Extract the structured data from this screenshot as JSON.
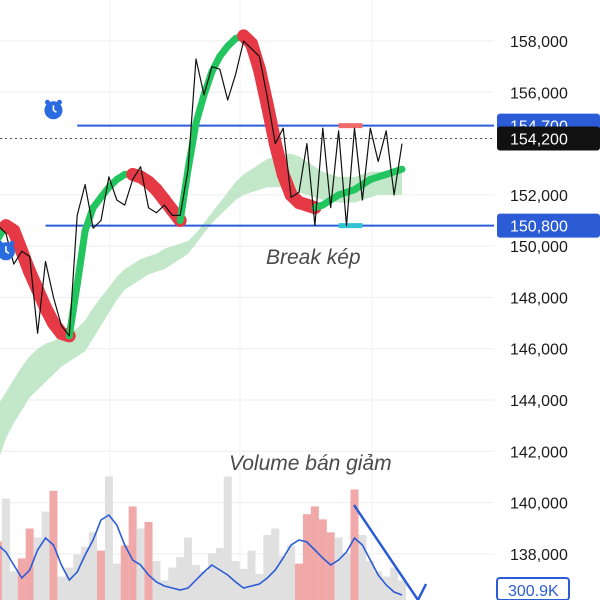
{
  "chart_data": {
    "type": "line",
    "y_axis": {
      "ticks": [
        {
          "value": 158000,
          "label": "158,000"
        },
        {
          "value": 156000,
          "label": "156,000"
        },
        {
          "value": 152000,
          "label": "152,000"
        },
        {
          "value": 150000,
          "label": "150,000"
        },
        {
          "value": 148000,
          "label": "148,000"
        },
        {
          "value": 146000,
          "label": "146,000"
        },
        {
          "value": 144000,
          "label": "144,000"
        },
        {
          "value": 142000,
          "label": "142,000"
        },
        {
          "value": 140000,
          "label": "140,000"
        },
        {
          "value": 138000,
          "label": "138,000"
        }
      ],
      "range": [
        136200,
        159600
      ],
      "grid": true
    },
    "price_tags": [
      {
        "value": 154700,
        "label": "154,700",
        "style": "blue"
      },
      {
        "value": 154200,
        "label": "154,200",
        "style": "dark"
      },
      {
        "value": 150800,
        "label": "150,800",
        "style": "blue"
      }
    ],
    "volume_tag": {
      "label": "300.9K"
    },
    "horizontal_levels": [
      {
        "value": 154700,
        "from_index": 10,
        "color": "#2b5cd6"
      },
      {
        "value": 150800,
        "from_index": 6,
        "color": "#2b5cd6"
      }
    ],
    "current_price": 154200,
    "series": [
      {
        "kind": "price",
        "values": [
          150800,
          150500,
          149300,
          149800,
          149600,
          146600,
          149400,
          148000,
          146900,
          146500,
          151200,
          152400,
          150700,
          151000,
          152700,
          151800,
          151600,
          152600,
          153100,
          151500,
          151300,
          151600,
          151200,
          151200,
          153000,
          157300,
          155900,
          157000,
          156900,
          155700,
          156700,
          158000,
          157700,
          157400,
          155800,
          154000,
          154600,
          151900,
          152100,
          154000,
          150800,
          154600,
          151500,
          154500,
          150800,
          154600,
          151800,
          154600,
          153300,
          154500,
          152000,
          154000
        ]
      },
      {
        "kind": "band_upper",
        "values": [
          143800,
          144300,
          144800,
          145300,
          145700,
          146000,
          146200,
          146300,
          146500,
          146600,
          146800,
          147100,
          147600,
          148000,
          148400,
          148800,
          149100,
          149300,
          149500,
          149600,
          149700,
          149900,
          150000,
          150100,
          150200,
          150500,
          150900,
          151300,
          151700,
          152100,
          152500,
          152800,
          153000,
          153200,
          153400,
          153500,
          153600,
          153600,
          153500,
          153300,
          153100,
          152900,
          152800,
          152700,
          152700,
          152700,
          152800,
          152900,
          152900,
          152900,
          152900,
          152900
        ]
      },
      {
        "kind": "band_lower",
        "values": [
          141600,
          142500,
          143100,
          143600,
          144100,
          144400,
          144700,
          145000,
          145300,
          145500,
          145700,
          145900,
          146400,
          146900,
          147400,
          147900,
          148300,
          148500,
          148700,
          148900,
          149000,
          149100,
          149300,
          149500,
          149700,
          150100,
          150500,
          150900,
          151200,
          151500,
          151800,
          152000,
          152100,
          152200,
          152300,
          152300,
          152300,
          152200,
          152100,
          152000,
          151900,
          151800,
          151800,
          151700,
          151700,
          151700,
          151800,
          151900,
          152000,
          152000,
          152000,
          152000
        ]
      },
      {
        "kind": "trend_line",
        "color_rule": "green when rising, red when falling",
        "values": [
          150300,
          150800,
          150600,
          149800,
          149000,
          148300,
          147600,
          147000,
          146600,
          146500,
          148500,
          150600,
          151500,
          151900,
          152300,
          152600,
          152800,
          152800,
          152700,
          152500,
          152200,
          151800,
          151400,
          151000,
          153000,
          154800,
          155900,
          156800,
          157400,
          157800,
          158100,
          158200,
          157900,
          156900,
          155500,
          154000,
          152800,
          152000,
          151700,
          151600,
          151500,
          151600,
          151800,
          152000,
          152100,
          152200,
          152400,
          152600,
          152700,
          152800,
          152900,
          153000
        ]
      }
    ],
    "volume_bars": [
      0.45,
      0.78,
      0.22,
      0.32,
      0.55,
      0.48,
      0.68,
      0.84,
      0.18,
      0.25,
      0.35,
      0.41,
      0.52,
      0.38,
      0.95,
      0.28,
      0.42,
      0.72,
      0.55,
      0.6,
      0.3,
      0.15,
      0.25,
      0.33,
      0.48,
      0.27,
      0.22,
      0.36,
      0.4,
      0.95,
      0.3,
      0.24,
      0.38,
      0.2,
      0.5,
      0.55,
      0.34,
      0.42,
      0.28,
      0.66,
      0.72,
      0.62,
      0.52,
      0.48,
      0.36,
      0.85,
      0.5,
      0.3,
      0.22,
      0.18,
      0.25,
      0.15
    ],
    "volume_bar_colors": [
      "#f0a8a8",
      "#e0e0e0",
      "#e0e0e0",
      "#f0a8a8",
      "#f0a8a8",
      "#e0e0e0",
      "#e0e0e0",
      "#f0a8a8",
      "#e0e0e0",
      "#e0e0e0",
      "#e0e0e0",
      "#e0e0e0",
      "#e0e0e0",
      "#f0a8a8",
      "#e0e0e0",
      "#e0e0e0",
      "#f0a8a8",
      "#f0a8a8",
      "#e0e0e0",
      "#f0a8a8",
      "#e0e0e0",
      "#e0e0e0",
      "#e0e0e0",
      "#e0e0e0",
      "#e0e0e0",
      "#e0e0e0",
      "#e0e0e0",
      "#e0e0e0",
      "#e0e0e0",
      "#e0e0e0",
      "#e0e0e0",
      "#e0e0e0",
      "#e0e0e0",
      "#e0e0e0",
      "#e0e0e0",
      "#e0e0e0",
      "#e0e0e0",
      "#e0e0e0",
      "#f0a8a8",
      "#f0a8a8",
      "#f0a8a8",
      "#f0a8a8",
      "#f0a8a8",
      "#e0e0e0",
      "#e0e0e0",
      "#f0a8a8",
      "#e0e0e0",
      "#e0e0e0",
      "#e0e0e0",
      "#e0e0e0",
      "#e0e0e0",
      "#e0e0e0"
    ],
    "volume_ma": [
      0.55,
      0.48,
      0.35,
      0.22,
      0.3,
      0.5,
      0.62,
      0.55,
      0.35,
      0.2,
      0.28,
      0.45,
      0.6,
      0.8,
      0.85,
      0.75,
      0.55,
      0.4,
      0.35,
      0.25,
      0.18,
      0.14,
      0.12,
      0.1,
      0.12,
      0.2,
      0.28,
      0.35,
      0.3,
      0.25,
      0.18,
      0.12,
      0.14,
      0.16,
      0.22,
      0.3,
      0.42,
      0.55,
      0.6,
      0.58,
      0.5,
      0.42,
      0.35,
      0.4,
      0.48,
      0.62,
      0.55,
      0.4,
      0.25,
      0.15,
      0.08,
      0.05
    ],
    "volume_trend_color": "#2b5cd6",
    "annotations": [
      {
        "text": "Break kép"
      },
      {
        "text": "Volume bán giảm"
      }
    ],
    "marker_icons": [
      {
        "name": "alarm-clock-icon",
        "index": 7,
        "value": 155300
      },
      {
        "name": "alarm-clock-icon",
        "index": 1,
        "value": 149800
      }
    ],
    "highlight_segments": [
      {
        "index_from": 43,
        "index_to": 46,
        "value": 154700,
        "color": "#f26b6b"
      },
      {
        "index_from": 43,
        "index_to": 46,
        "value": 150800,
        "color": "#2fc4d3"
      }
    ],
    "colors": {
      "up": "#22c55e",
      "down": "#e63946",
      "band": "#b9e4c0",
      "level_line": "#2b5cd6",
      "tag_blue_bg": "#2b5cd6",
      "tag_dark_bg": "#111111"
    }
  }
}
